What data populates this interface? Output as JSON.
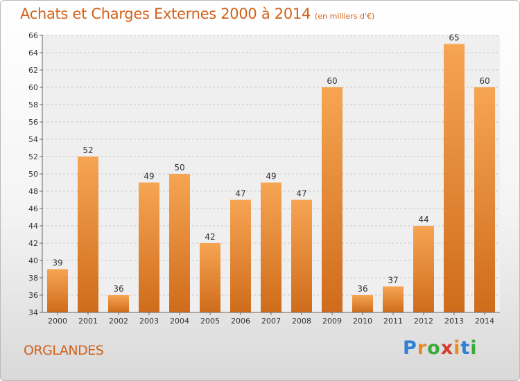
{
  "header": {
    "title": "Achats et Charges Externes 2000 à 2014",
    "subtitle": "(en milliers d'€)"
  },
  "footer": {
    "city": "ORGLANDES",
    "logo_letters": [
      {
        "ch": "P",
        "color": "#2f7fd2"
      },
      {
        "ch": "r",
        "color": "#e8891c"
      },
      {
        "ch": "o",
        "color": "#3aa93a"
      },
      {
        "ch": "x",
        "color": "#d83a2a"
      },
      {
        "ch": "i",
        "color": "#e8891c"
      },
      {
        "ch": "t",
        "color": "#2f7fd2"
      },
      {
        "ch": "i",
        "color": "#3aa93a"
      }
    ]
  },
  "chart_data": {
    "type": "bar",
    "title": "Achats et Charges Externes 2000 à 2014",
    "subtitle": "(en milliers d'€)",
    "categories": [
      "2000",
      "2001",
      "2002",
      "2003",
      "2004",
      "2005",
      "2006",
      "2007",
      "2008",
      "2009",
      "2010",
      "2011",
      "2012",
      "2013",
      "2014"
    ],
    "values": [
      39,
      52,
      36,
      49,
      50,
      42,
      47,
      49,
      47,
      60,
      36,
      37,
      44,
      65,
      60
    ],
    "ylim": [
      34,
      66
    ],
    "yticks": [
      34,
      36,
      38,
      40,
      42,
      44,
      46,
      48,
      50,
      52,
      54,
      56,
      58,
      60,
      62,
      64,
      66
    ],
    "grid": true,
    "bar_color_light": "#f6a553",
    "bar_color_dark": "#cf6c1b"
  }
}
